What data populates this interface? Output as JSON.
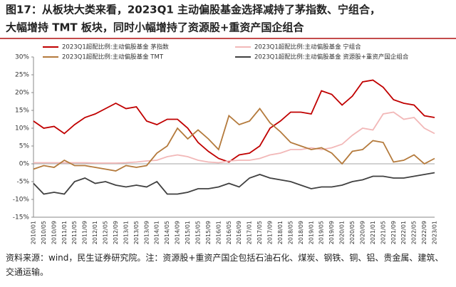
{
  "chart_data": {
    "type": "line",
    "title": "图17：从板块大类来看，2023Q1 主动偏股基金选择减持了茅指数、宁组合，",
    "subtitle": "大幅增持 TMT 板块，同时小幅增持了资源股+重资产国企组合",
    "note": "资料来源：wind，民生证券研究院。注：资源股+重资产国企包括石油石化、煤炭、钢铁、铜、铝、贵金属、建筑、交通运输。",
    "categories": [
      "2010/01",
      "2010/05",
      "2010/09",
      "2011/01",
      "2011/05",
      "2011/09",
      "2012/01",
      "2012/05",
      "2012/09",
      "2013/01",
      "2013/05",
      "2013/09",
      "2014/01",
      "2014/05",
      "2014/09",
      "2015/01",
      "2015/05",
      "2015/09",
      "2016/01",
      "2016/05",
      "2016/09",
      "2017/01",
      "2017/05",
      "2017/09",
      "2018/01",
      "2018/05",
      "2018/09",
      "2019/01",
      "2019/05",
      "2019/09",
      "2020/01",
      "2020/05",
      "2020/09",
      "2021/01",
      "2021/05",
      "2021/09",
      "2022/01",
      "2022/05",
      "2022/09",
      "2023/01"
    ],
    "series": [
      {
        "name": "2023Q1超配比例:主动偏股基金 茅指数",
        "color": "#c00000",
        "values": [
          12,
          10,
          10.5,
          8.5,
          11,
          13,
          14,
          15.5,
          17,
          15.5,
          16,
          12,
          11,
          12.5,
          12.5,
          10,
          6,
          3.5,
          1.5,
          0.5,
          2.5,
          3,
          5,
          10,
          12,
          14.5,
          14.5,
          14,
          20.5,
          19.5,
          16.5,
          19,
          23,
          23.5,
          21.5,
          18,
          17,
          16.5,
          13.5,
          13
        ]
      },
      {
        "name": "2023Q1超配比例:主动偏股基金 宁组合",
        "color": "#f2b8b8",
        "values": [
          0.3,
          0.3,
          0.3,
          0.3,
          0.3,
          0.3,
          0.2,
          0.2,
          0.2,
          0.3,
          0.5,
          0.8,
          1,
          2,
          2.5,
          2,
          1,
          0.5,
          0.3,
          0.8,
          1,
          1,
          1.5,
          2.5,
          3,
          4,
          4,
          4.5,
          4,
          4.5,
          5.5,
          8,
          10,
          9.5,
          14,
          14.5,
          12.5,
          13,
          10,
          8.5
        ]
      },
      {
        "name": "2023Q1超配比例:主动偏股基金 TMT",
        "color": "#b47a3c",
        "values": [
          -1.5,
          -0.5,
          -1,
          1,
          -0.5,
          -0.5,
          -1,
          -1.5,
          -2,
          -0.5,
          -1,
          -0.5,
          3,
          5,
          10,
          7,
          9.5,
          7,
          4,
          13.5,
          11,
          12,
          15.5,
          11.5,
          9,
          6,
          5,
          4,
          4.5,
          3,
          0,
          3.5,
          4,
          6.5,
          6,
          0.5,
          1,
          2.5,
          0,
          1.5
        ]
      },
      {
        "name": "2023Q1超配比例:主动偏股基金 资源股+重资产国企组合",
        "color": "#404040",
        "values": [
          -5.5,
          -8.5,
          -8,
          -8.5,
          -5,
          -4,
          -5.5,
          -5,
          -6,
          -6.5,
          -6,
          -6.5,
          -5,
          -8.5,
          -8.5,
          -8,
          -7,
          -7,
          -6.5,
          -5.5,
          -6.5,
          -4,
          -3,
          -4,
          -4.5,
          -5,
          -6,
          -7,
          -6.5,
          -6.5,
          -6,
          -5,
          -4.5,
          -3.5,
          -3.5,
          -4,
          -4,
          -3.5,
          -3,
          -2.5
        ]
      }
    ],
    "ylim": [
      -15,
      30
    ],
    "yticks": [
      {
        "value": -15,
        "label": "-15%"
      },
      {
        "value": -10,
        "label": "-10%"
      },
      {
        "value": -5,
        "label": "-5%"
      },
      {
        "value": 0,
        "label": "0%"
      },
      {
        "value": 5,
        "label": "5%"
      },
      {
        "value": 10,
        "label": "10%"
      },
      {
        "value": 15,
        "label": "15%"
      },
      {
        "value": 20,
        "label": "20%"
      },
      {
        "value": 25,
        "label": "25%"
      },
      {
        "value": 30,
        "label": "30%"
      }
    ]
  }
}
